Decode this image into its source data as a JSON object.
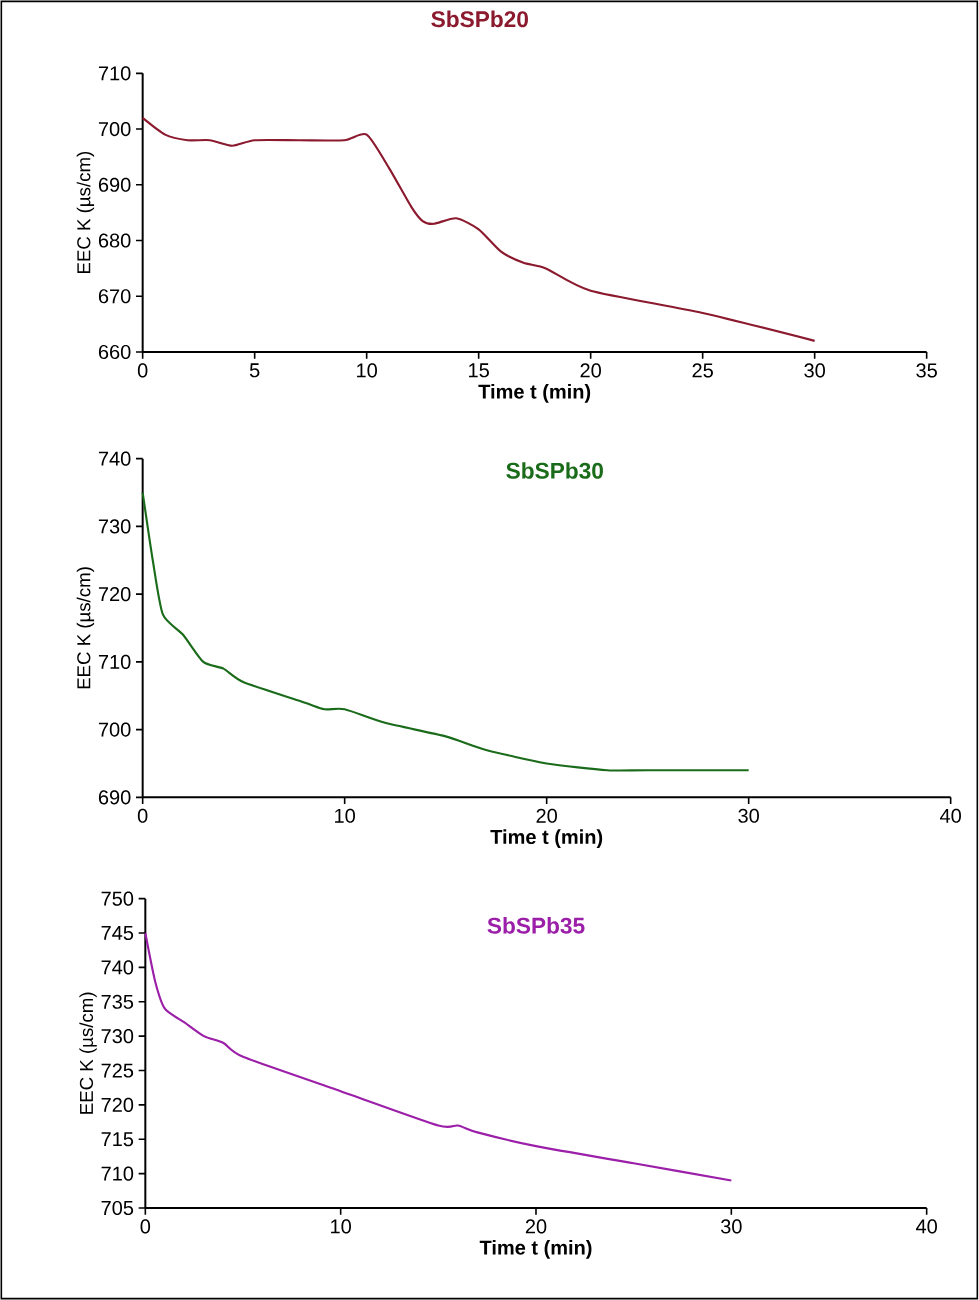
{
  "chart_data": [
    {
      "type": "line",
      "title": "SbSPb20",
      "xlabel": "Time t (min)",
      "ylabel": "EEC K (µs/cm)",
      "color": "#8b1a2e",
      "marker": "none",
      "line_style": "solid",
      "x": [
        0,
        1,
        2,
        3,
        4,
        5,
        7,
        9,
        10,
        11,
        12,
        12.5,
        13,
        14,
        15,
        16,
        17,
        18,
        20,
        25,
        30
      ],
      "values": [
        702,
        699,
        698,
        698,
        697,
        698,
        698,
        698,
        699,
        693,
        686,
        683.5,
        683,
        684,
        682,
        678,
        676,
        675,
        671,
        667,
        662
      ],
      "xlim": [
        0,
        35
      ],
      "ylim": [
        660,
        710
      ],
      "xticks": [
        0,
        5,
        10,
        15,
        20,
        25,
        30,
        35
      ],
      "yticks": [
        660,
        670,
        680,
        690,
        700,
        710
      ]
    },
    {
      "type": "line",
      "title": "SbSPb30",
      "xlabel": "Time t (min)",
      "ylabel": "EEC K (µs/cm)",
      "color": "#1a6b1a",
      "marker": "none",
      "line_style": "solid",
      "x": [
        0,
        0.5,
        1,
        2,
        3,
        4,
        5,
        8,
        9,
        10,
        12,
        15,
        17,
        20,
        23,
        25,
        30
      ],
      "values": [
        735,
        725,
        717,
        714,
        710,
        709,
        707,
        704,
        703,
        703,
        701,
        699,
        697,
        695,
        694,
        694,
        694
      ],
      "xlim": [
        0,
        40
      ],
      "ylim": [
        690,
        740
      ],
      "xticks": [
        0,
        10,
        20,
        30,
        40
      ],
      "yticks": [
        690,
        700,
        710,
        720,
        730,
        740
      ]
    },
    {
      "type": "line",
      "title": "SbSPb35",
      "xlabel": "Time t (min)",
      "ylabel": "EEC K (µs/cm)",
      "color": "#9b1fa8",
      "marker": "none",
      "line_style": "solid",
      "x": [
        0,
        0.5,
        1,
        2,
        3,
        4,
        5,
        10,
        15,
        16,
        17,
        20,
        25,
        30
      ],
      "values": [
        745,
        738,
        734,
        732,
        730,
        729,
        727,
        722,
        717,
        717,
        716,
        714,
        711.5,
        709
      ],
      "xlim": [
        0,
        40
      ],
      "ylim": [
        705,
        750
      ],
      "xticks": [
        0,
        10,
        20,
        30,
        40
      ],
      "yticks": [
        705,
        710,
        715,
        720,
        725,
        730,
        735,
        740,
        745,
        750
      ]
    }
  ]
}
